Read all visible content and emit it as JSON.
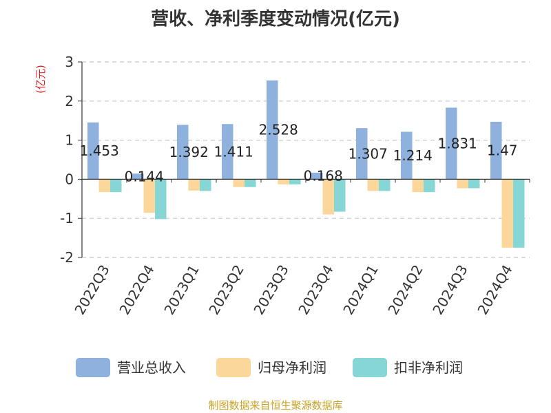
{
  "chart_data": {
    "type": "bar",
    "title": "营收、净利季度变动情况(亿元)",
    "ylabel": "(亿元)",
    "ylim": [
      -2,
      3
    ],
    "yticks": [
      3,
      2,
      1,
      0,
      -1,
      -2
    ],
    "grid": true,
    "legend_position": "bottom",
    "categories": [
      "2022Q3",
      "2022Q4",
      "2023Q1",
      "2023Q2",
      "2023Q3",
      "2023Q4",
      "2024Q1",
      "2024Q2",
      "2024Q3",
      "2024Q4"
    ],
    "series": [
      {
        "name": "营业总收入",
        "color": "#8eb1de",
        "values": [
          1.453,
          0.144,
          1.392,
          1.411,
          2.528,
          0.168,
          1.307,
          1.214,
          1.831,
          1.47
        ],
        "labels": [
          "1.453",
          "0.144",
          "1.392",
          "1.411",
          "2.528",
          "0.168",
          "1.307",
          "1.214",
          "1.831",
          "1.47"
        ]
      },
      {
        "name": "归母净利润",
        "color": "#fcd79c",
        "values": [
          -0.33,
          -0.86,
          -0.29,
          -0.2,
          -0.13,
          -0.9,
          -0.3,
          -0.33,
          -0.23,
          -1.75
        ]
      },
      {
        "name": "扣非净利润",
        "color": "#86d6d6",
        "values": [
          -0.33,
          -1.02,
          -0.3,
          -0.2,
          -0.13,
          -0.83,
          -0.3,
          -0.33,
          -0.23,
          -1.75
        ]
      }
    ],
    "source": "制图数据来自恒生聚源数据库"
  }
}
